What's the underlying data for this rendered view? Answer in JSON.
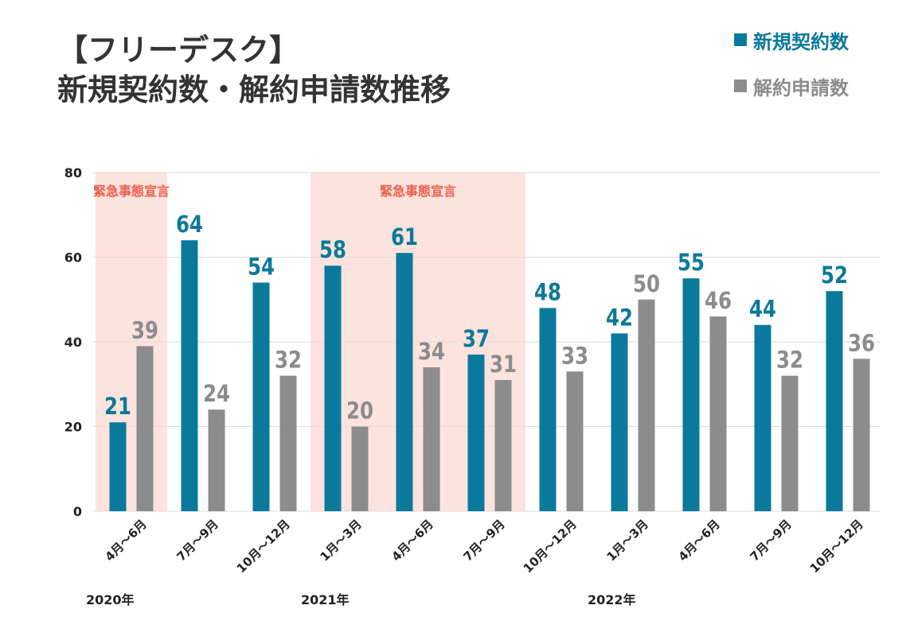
{
  "title_lines": [
    "【フリーデスク】",
    "新規契約数・解約申請数推移"
  ],
  "colors": {
    "new": "#0b799b",
    "cancel": "#8c8c8c",
    "emergency_bg": "#fde3dd",
    "emergency_text": "#e8604c",
    "grid": "#dddddd",
    "text": "#222222"
  },
  "chart_data": {
    "type": "bar",
    "title": "【フリーデスク】新規契約数・解約申請数推移",
    "categories": [
      "4月～6月",
      "7月～9月",
      "10月～12月",
      "1月～3月",
      "4月～6月",
      "7月～9月",
      "10月～12月",
      "1月～3月",
      "4月～6月",
      "7月～9月",
      "10月～12月"
    ],
    "series": [
      {
        "name": "新規契約数",
        "values": [
          21,
          64,
          54,
          58,
          61,
          37,
          48,
          42,
          55,
          44,
          52
        ]
      },
      {
        "name": "解約申請数",
        "values": [
          39,
          24,
          32,
          20,
          34,
          31,
          33,
          50,
          46,
          32,
          36
        ]
      }
    ],
    "ylim": [
      0,
      80
    ],
    "yticks": [
      0,
      20,
      40,
      60,
      80
    ],
    "grid": true,
    "legend_position": "top-right",
    "years": [
      {
        "label": "2020年",
        "start_index": 0
      },
      {
        "label": "2021年",
        "start_index": 3
      },
      {
        "label": "2022年",
        "start_index": 7
      }
    ],
    "annotations": [
      {
        "label": "緊急事態宣言",
        "from_index": 0,
        "to_index": 0
      },
      {
        "label": "緊急事態宣言",
        "from_index": 3,
        "to_index": 5
      }
    ]
  }
}
